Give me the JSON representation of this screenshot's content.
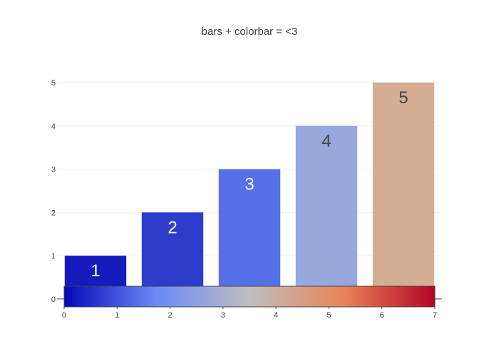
{
  "chart_data": {
    "type": "bar",
    "title": "bars + colorbar = <3",
    "categories": [
      1,
      2,
      3,
      4,
      5
    ],
    "values": [
      1,
      2,
      3,
      4,
      5
    ],
    "data_labels": [
      "1",
      "2",
      "3",
      "4",
      "5"
    ],
    "ylim": [
      -0.2,
      5
    ],
    "y_ticks": [
      0,
      1,
      2,
      3,
      4,
      5
    ],
    "grid": true,
    "colorscale": [
      "#0508b8",
      "#6a89f7",
      "#bebebe",
      "#e8855a",
      "#b40426"
    ],
    "bar_colors": [
      "#141cbd",
      "#2e3ccc",
      "#5670e8",
      "#97a8dc",
      "#d3ae94"
    ],
    "colorbar": {
      "range": [
        0,
        7
      ],
      "ticks": [
        0,
        1,
        2,
        3,
        4,
        5,
        6,
        7
      ],
      "orientation": "horizontal"
    }
  }
}
